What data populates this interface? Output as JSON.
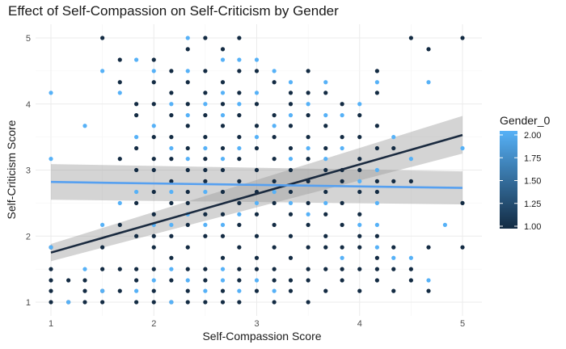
{
  "chart_data": {
    "type": "scatter",
    "title": "Effect of Self-Compassion on Self-Criticism by Gender",
    "xlabel": "Self-Compassion Score",
    "ylabel": "Self-Criticism Score",
    "xlim": [
      0.8,
      5.2
    ],
    "ylim": [
      0.9,
      5.1
    ],
    "x_ticks": [
      "1",
      "2",
      "3",
      "4",
      "5"
    ],
    "y_ticks": [
      "1",
      "2",
      "3",
      "4",
      "5"
    ],
    "grid": true,
    "legend": {
      "title": "Gender_0",
      "placement": "right",
      "type": "colorbar",
      "range": [
        1.0,
        2.0
      ],
      "labels": [
        "2.00",
        "1.75",
        "1.50",
        "1.25",
        "1.00"
      ],
      "low_color": "#132B43",
      "high_color": "#56B1F7"
    },
    "regression_lines": [
      {
        "gender": 1,
        "x": [
          1,
          5
        ],
        "y": [
          1.75,
          3.53
        ],
        "ci_low": [
          1.62,
          3.25
        ],
        "ci_high": [
          1.88,
          3.82
        ],
        "color": "#1a2a3f"
      },
      {
        "gender": 2,
        "x": [
          1,
          5
        ],
        "y": [
          2.82,
          2.73
        ],
        "ci_low": [
          2.55,
          2.48
        ],
        "ci_high": [
          3.09,
          2.98
        ],
        "color": "#56A0F0"
      }
    ],
    "series": [
      {
        "gender": 1,
        "points": [
          [
            1,
            1
          ],
          [
            1,
            1.17
          ],
          [
            1,
            1.33
          ],
          [
            1,
            1.5
          ],
          [
            1,
            1.83
          ],
          [
            1.17,
            1
          ],
          [
            1.17,
            1.33
          ],
          [
            1.33,
            1
          ],
          [
            1.33,
            1.17
          ],
          [
            1.33,
            1.33
          ],
          [
            1.5,
            1
          ],
          [
            1.5,
            1.17
          ],
          [
            1.5,
            1.5
          ],
          [
            1.5,
            1.83
          ],
          [
            1.5,
            5
          ],
          [
            1.67,
            1.17
          ],
          [
            1.67,
            1.5
          ],
          [
            1.67,
            2.17
          ],
          [
            1.67,
            3.17
          ],
          [
            1.67,
            4.33
          ],
          [
            1.67,
            4.67
          ],
          [
            1.83,
            1
          ],
          [
            1.83,
            1.33
          ],
          [
            1.83,
            1.5
          ],
          [
            1.83,
            2
          ],
          [
            1.83,
            2.5
          ],
          [
            1.83,
            3
          ],
          [
            1.83,
            3.33
          ],
          [
            1.83,
            3.83
          ],
          [
            1.83,
            4
          ],
          [
            2,
            1
          ],
          [
            2,
            1.17
          ],
          [
            2,
            1.5
          ],
          [
            2,
            1.83
          ],
          [
            2,
            2
          ],
          [
            2,
            2.33
          ],
          [
            2,
            2.67
          ],
          [
            2,
            3
          ],
          [
            2,
            3.17
          ],
          [
            2,
            3.5
          ],
          [
            2,
            4
          ],
          [
            2,
            4.33
          ],
          [
            2,
            4.67
          ],
          [
            2.17,
            1
          ],
          [
            2.17,
            1.33
          ],
          [
            2.17,
            1.67
          ],
          [
            2.17,
            2
          ],
          [
            2.17,
            2.5
          ],
          [
            2.17,
            2.83
          ],
          [
            2.17,
            3.17
          ],
          [
            2.17,
            3.5
          ],
          [
            2.17,
            3.83
          ],
          [
            2.17,
            4.17
          ],
          [
            2.17,
            4.5
          ],
          [
            2.33,
            1
          ],
          [
            2.33,
            1.17
          ],
          [
            2.33,
            1.5
          ],
          [
            2.33,
            1.83
          ],
          [
            2.33,
            2.17
          ],
          [
            2.33,
            2.5
          ],
          [
            2.33,
            2.67
          ],
          [
            2.33,
            3
          ],
          [
            2.33,
            3.33
          ],
          [
            2.33,
            3.67
          ],
          [
            2.33,
            4
          ],
          [
            2.33,
            4.33
          ],
          [
            2.33,
            4.83
          ],
          [
            2.5,
            1
          ],
          [
            2.5,
            1.33
          ],
          [
            2.5,
            1.5
          ],
          [
            2.5,
            2
          ],
          [
            2.5,
            2.33
          ],
          [
            2.5,
            2.83
          ],
          [
            2.5,
            3
          ],
          [
            2.5,
            3.17
          ],
          [
            2.5,
            3.5
          ],
          [
            2.5,
            3.83
          ],
          [
            2.5,
            4.17
          ],
          [
            2.5,
            4.5
          ],
          [
            2.5,
            5
          ],
          [
            2.67,
            1
          ],
          [
            2.67,
            1.17
          ],
          [
            2.67,
            1.67
          ],
          [
            2.67,
            2
          ],
          [
            2.67,
            2.33
          ],
          [
            2.67,
            2.67
          ],
          [
            2.67,
            3
          ],
          [
            2.67,
            3.33
          ],
          [
            2.67,
            3.67
          ],
          [
            2.67,
            4
          ],
          [
            2.67,
            4.33
          ],
          [
            2.67,
            4.83
          ],
          [
            2.83,
            1
          ],
          [
            2.83,
            1.33
          ],
          [
            2.83,
            1.5
          ],
          [
            2.83,
            1.83
          ],
          [
            2.83,
            2.17
          ],
          [
            2.83,
            2.5
          ],
          [
            2.83,
            2.83
          ],
          [
            2.83,
            3.17
          ],
          [
            2.83,
            3.5
          ],
          [
            2.83,
            3.83
          ],
          [
            2.83,
            4.17
          ],
          [
            2.83,
            4.5
          ],
          [
            2.83,
            5
          ],
          [
            3,
            1.17
          ],
          [
            3,
            1.5
          ],
          [
            3,
            1.67
          ],
          [
            3,
            2
          ],
          [
            3,
            2.33
          ],
          [
            3,
            2.67
          ],
          [
            3,
            3
          ],
          [
            3,
            3.33
          ],
          [
            3,
            3.67
          ],
          [
            3,
            4
          ],
          [
            3,
            4.5
          ],
          [
            3.17,
            1
          ],
          [
            3.17,
            1.33
          ],
          [
            3.17,
            1.5
          ],
          [
            3.17,
            1.83
          ],
          [
            3.17,
            2.17
          ],
          [
            3.17,
            2.5
          ],
          [
            3.17,
            2.83
          ],
          [
            3.17,
            3.17
          ],
          [
            3.17,
            3.5
          ],
          [
            3.17,
            3.83
          ],
          [
            3.17,
            4.33
          ],
          [
            3.33,
            1.17
          ],
          [
            3.33,
            1.33
          ],
          [
            3.33,
            1.67
          ],
          [
            3.33,
            2
          ],
          [
            3.33,
            2.33
          ],
          [
            3.33,
            2.67
          ],
          [
            3.33,
            3
          ],
          [
            3.33,
            3.33
          ],
          [
            3.33,
            3.67
          ],
          [
            3.33,
            4
          ],
          [
            3.33,
            4.17
          ],
          [
            3.5,
            1
          ],
          [
            3.5,
            1.33
          ],
          [
            3.5,
            1.5
          ],
          [
            3.5,
            1.83
          ],
          [
            3.5,
            2.17
          ],
          [
            3.5,
            2.5
          ],
          [
            3.5,
            2.83
          ],
          [
            3.5,
            3.17
          ],
          [
            3.5,
            3.5
          ],
          [
            3.5,
            3.83
          ],
          [
            3.5,
            4.17
          ],
          [
            3.5,
            4.5
          ],
          [
            3.67,
            1.17
          ],
          [
            3.67,
            1.5
          ],
          [
            3.67,
            1.83
          ],
          [
            3.67,
            2
          ],
          [
            3.67,
            2.33
          ],
          [
            3.67,
            2.67
          ],
          [
            3.67,
            3
          ],
          [
            3.67,
            3.33
          ],
          [
            3.67,
            3.67
          ],
          [
            3.67,
            4.17
          ],
          [
            3.83,
            1.33
          ],
          [
            3.83,
            1.5
          ],
          [
            3.83,
            1.83
          ],
          [
            3.83,
            2.17
          ],
          [
            3.83,
            2.5
          ],
          [
            3.83,
            2.83
          ],
          [
            3.83,
            3
          ],
          [
            3.83,
            3.5
          ],
          [
            3.83,
            4
          ],
          [
            4,
            1.17
          ],
          [
            4,
            1.5
          ],
          [
            4,
            1.83
          ],
          [
            4,
            2
          ],
          [
            4,
            2.33
          ],
          [
            4,
            2.67
          ],
          [
            4,
            3
          ],
          [
            4,
            3.17
          ],
          [
            4,
            3.5
          ],
          [
            4,
            3.83
          ],
          [
            4.17,
            1.33
          ],
          [
            4.17,
            1.5
          ],
          [
            4.17,
            1.67
          ],
          [
            4.17,
            2
          ],
          [
            4.17,
            2.67
          ],
          [
            4.17,
            2.83
          ],
          [
            4.17,
            3.33
          ],
          [
            4.17,
            3.67
          ],
          [
            4.17,
            4.17
          ],
          [
            4.17,
            4.5
          ],
          [
            4.33,
            1.17
          ],
          [
            4.33,
            1.5
          ],
          [
            4.33,
            1.83
          ],
          [
            4.33,
            2.83
          ],
          [
            4.33,
            3.33
          ],
          [
            4.5,
            1.33
          ],
          [
            4.5,
            1.5
          ],
          [
            4.5,
            2.83
          ],
          [
            4.5,
            5
          ],
          [
            4.67,
            1.17
          ],
          [
            4.67,
            1.83
          ],
          [
            4.67,
            4.83
          ],
          [
            5,
            1.83
          ],
          [
            5,
            2.5
          ],
          [
            5,
            5
          ]
        ]
      },
      {
        "gender": 2,
        "points": [
          [
            1,
            1.83
          ],
          [
            1,
            3.17
          ],
          [
            1,
            4.17
          ],
          [
            1.17,
            1
          ],
          [
            1.33,
            1.5
          ],
          [
            1.33,
            3.67
          ],
          [
            1.5,
            1.17
          ],
          [
            1.5,
            2.17
          ],
          [
            1.5,
            4.5
          ],
          [
            1.67,
            2.5
          ],
          [
            1.67,
            4.17
          ],
          [
            1.83,
            1.17
          ],
          [
            1.83,
            2.67
          ],
          [
            1.83,
            3.5
          ],
          [
            1.83,
            4.67
          ],
          [
            2,
            1.33
          ],
          [
            2,
            2.17
          ],
          [
            2,
            3.67
          ],
          [
            2,
            4.5
          ],
          [
            2.17,
            1
          ],
          [
            2.17,
            1.5
          ],
          [
            2.17,
            2.17
          ],
          [
            2.17,
            2.67
          ],
          [
            2.17,
            3.33
          ],
          [
            2.17,
            4
          ],
          [
            2.33,
            1.33
          ],
          [
            2.33,
            2.33
          ],
          [
            2.33,
            3.17
          ],
          [
            2.33,
            3.83
          ],
          [
            2.33,
            4.5
          ],
          [
            2.33,
            5
          ],
          [
            2.5,
            1.17
          ],
          [
            2.5,
            2.17
          ],
          [
            2.5,
            2.67
          ],
          [
            2.5,
            3.33
          ],
          [
            2.5,
            4
          ],
          [
            2.67,
            1.33
          ],
          [
            2.67,
            1.5
          ],
          [
            2.67,
            2.17
          ],
          [
            2.67,
            3.17
          ],
          [
            2.67,
            3.83
          ],
          [
            2.67,
            4.17
          ],
          [
            2.67,
            4.67
          ],
          [
            2.83,
            1.17
          ],
          [
            2.83,
            2.33
          ],
          [
            2.83,
            3.33
          ],
          [
            2.83,
            4
          ],
          [
            2.83,
            4.67
          ],
          [
            3,
            1.33
          ],
          [
            3,
            2.5
          ],
          [
            3,
            3.5
          ],
          [
            3,
            4.17
          ],
          [
            3,
            4.67
          ],
          [
            3.17,
            1.17
          ],
          [
            3.17,
            2.67
          ],
          [
            3.17,
            3.67
          ],
          [
            3.17,
            4.5
          ],
          [
            3.33,
            2.5
          ],
          [
            3.33,
            3.17
          ],
          [
            3.33,
            3.83
          ],
          [
            3.33,
            4.33
          ],
          [
            3.5,
            2.33
          ],
          [
            3.5,
            3.33
          ],
          [
            3.5,
            4
          ],
          [
            3.67,
            2.5
          ],
          [
            3.67,
            3.17
          ],
          [
            3.67,
            3.83
          ],
          [
            3.67,
            4.33
          ],
          [
            3.83,
            1.67
          ],
          [
            3.83,
            3.33
          ],
          [
            3.83,
            3.83
          ],
          [
            4,
            2.17
          ],
          [
            4,
            2.83
          ],
          [
            4,
            4
          ],
          [
            4.17,
            1.83
          ],
          [
            4.17,
            2.17
          ],
          [
            4.17,
            2.5
          ],
          [
            4.17,
            3
          ],
          [
            4.17,
            4.33
          ],
          [
            4.33,
            1.67
          ],
          [
            4.33,
            3.5
          ],
          [
            4.5,
            1.67
          ],
          [
            4.5,
            3.17
          ],
          [
            4.67,
            1.33
          ],
          [
            4.67,
            4.33
          ],
          [
            4.83,
            2.17
          ],
          [
            5,
            3.33
          ]
        ]
      }
    ]
  }
}
